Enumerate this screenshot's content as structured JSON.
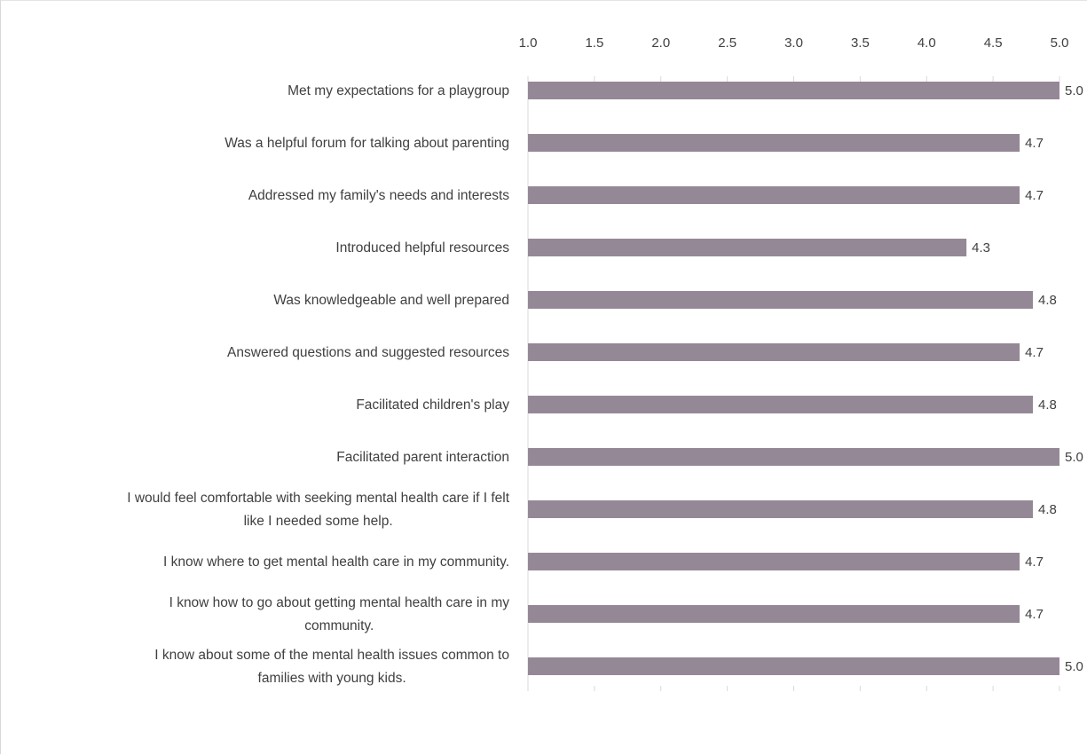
{
  "chart_data": {
    "type": "bar",
    "orientation": "horizontal",
    "xlim": [
      1.0,
      5.0
    ],
    "ticks": [
      "1.0",
      "1.5",
      "2.0",
      "2.5",
      "3.0",
      "3.5",
      "4.0",
      "4.5",
      "5.0"
    ],
    "tick_values": [
      1.0,
      1.5,
      2.0,
      2.5,
      3.0,
      3.5,
      4.0,
      4.5,
      5.0
    ],
    "axis_position": "top",
    "grid": false,
    "bar_color": "#958896",
    "categories": [
      [
        "Met my expectations for a playgroup"
      ],
      [
        "Was a helpful forum for talking about parenting"
      ],
      [
        "Addressed my family's needs and interests"
      ],
      [
        "Introduced helpful resources"
      ],
      [
        "Was knowledgeable and well prepared"
      ],
      [
        "Answered questions and suggested resources"
      ],
      [
        "Facilitated children's play"
      ],
      [
        "Facilitated parent interaction"
      ],
      [
        "I would feel comfortable with seeking mental health care if I felt",
        "like I needed some help."
      ],
      [
        "I know where to get mental health care in my community."
      ],
      [
        "I know how to go about getting mental health care in my",
        "community."
      ],
      [
        "I know about some of the mental health issues common to",
        "families with young kids."
      ]
    ],
    "values": [
      5.0,
      4.7,
      4.7,
      4.3,
      4.8,
      4.7,
      4.8,
      5.0,
      4.8,
      4.7,
      4.7,
      5.0
    ],
    "value_labels": [
      "5.0",
      "4.7",
      "4.7",
      "4.3",
      "4.8",
      "4.7",
      "4.8",
      "5.0",
      "4.8",
      "4.7",
      "4.7",
      "5.0"
    ]
  }
}
